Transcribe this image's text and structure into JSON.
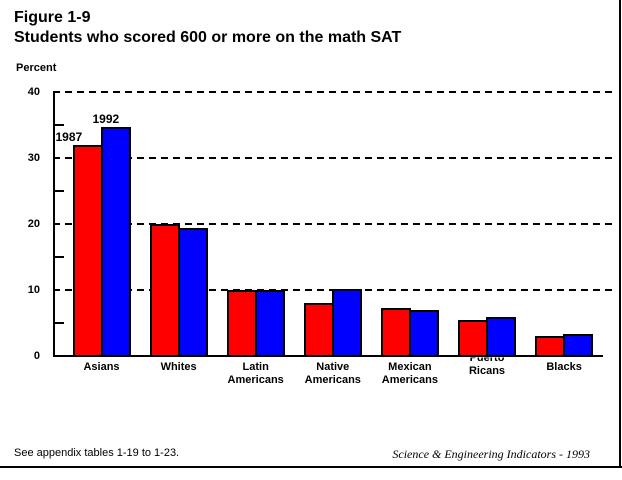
{
  "header": {
    "figure_label": "Figure 1-9",
    "title": "Students who scored 600 or more on the math SAT"
  },
  "footer": {
    "note": "See appendix tables 1-19 to 1-23.",
    "credit": "Science & Engineering Indicators - 1993"
  },
  "colors": {
    "series_1987": "#ff0000",
    "series_1992": "#0000ff",
    "axis": "#000000",
    "background": "#ffffff"
  },
  "chart_data": {
    "type": "bar",
    "title": "Students who scored 600 or more on the math SAT",
    "xlabel": "",
    "ylabel": "Percent",
    "ylim": [
      0,
      40
    ],
    "yticks": [
      0,
      10,
      20,
      30,
      40
    ],
    "minor_yticks": [
      5,
      15,
      25,
      35
    ],
    "grid": "dashed horizontal lines at major ticks",
    "legend_position": "labels above first category group",
    "categories": [
      "Asians",
      "Whites",
      "Latin Americans",
      "Native Americans",
      "Mexican Americans",
      "Puerto Ricans",
      "Blacks"
    ],
    "category_lines": [
      [
        "Asians"
      ],
      [
        "Whites"
      ],
      [
        "Latin",
        "Americans"
      ],
      [
        "Native",
        "Americans"
      ],
      [
        "Mexican",
        "Americans"
      ],
      [
        "Puerto",
        "Ricans"
      ],
      [
        "Blacks"
      ]
    ],
    "series": [
      {
        "name": "1987",
        "color": "#ff0000",
        "values": [
          32,
          20,
          10,
          8,
          7.3,
          5.4,
          3
        ]
      },
      {
        "name": "1992",
        "color": "#0000ff",
        "values": [
          34.7,
          19.4,
          10,
          10.2,
          7,
          5.9,
          3.3
        ]
      }
    ]
  }
}
